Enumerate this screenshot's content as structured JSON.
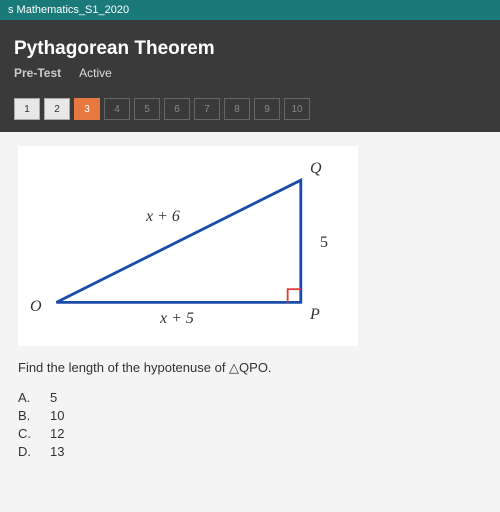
{
  "header_strip": "s Mathematics_S1_2020",
  "topic": "Pythagorean Theorem",
  "pretest_label": "Pre-Test",
  "active_label": "Active",
  "nav": [
    {
      "n": "1",
      "state": "done"
    },
    {
      "n": "2",
      "state": "done"
    },
    {
      "n": "3",
      "state": "current"
    },
    {
      "n": "4",
      "state": ""
    },
    {
      "n": "5",
      "state": ""
    },
    {
      "n": "6",
      "state": ""
    },
    {
      "n": "7",
      "state": ""
    },
    {
      "n": "8",
      "state": ""
    },
    {
      "n": "9",
      "state": ""
    },
    {
      "n": "10",
      "state": ""
    }
  ],
  "triangle": {
    "stroke": "#1a4ba8",
    "stroke_width": 3,
    "right_angle_color": "#e04040",
    "vertices": {
      "Q": "Q",
      "O": "O",
      "P": "P"
    },
    "sides": {
      "hyp": "x + 6",
      "vert": "5",
      "base": "x + 5"
    }
  },
  "question": "Find the length of the hypotenuse of △QPO.",
  "options": [
    {
      "letter": "A.",
      "text": "5"
    },
    {
      "letter": "B.",
      "text": "10"
    },
    {
      "letter": "C.",
      "text": "12"
    },
    {
      "letter": "D.",
      "text": "13"
    }
  ],
  "colors": {
    "bg_dark": "#2a2a2a",
    "bg_header": "#3a3a3a",
    "teal": "#1a7a7a",
    "orange": "#e67840",
    "content_bg": "#f4f4f4"
  }
}
